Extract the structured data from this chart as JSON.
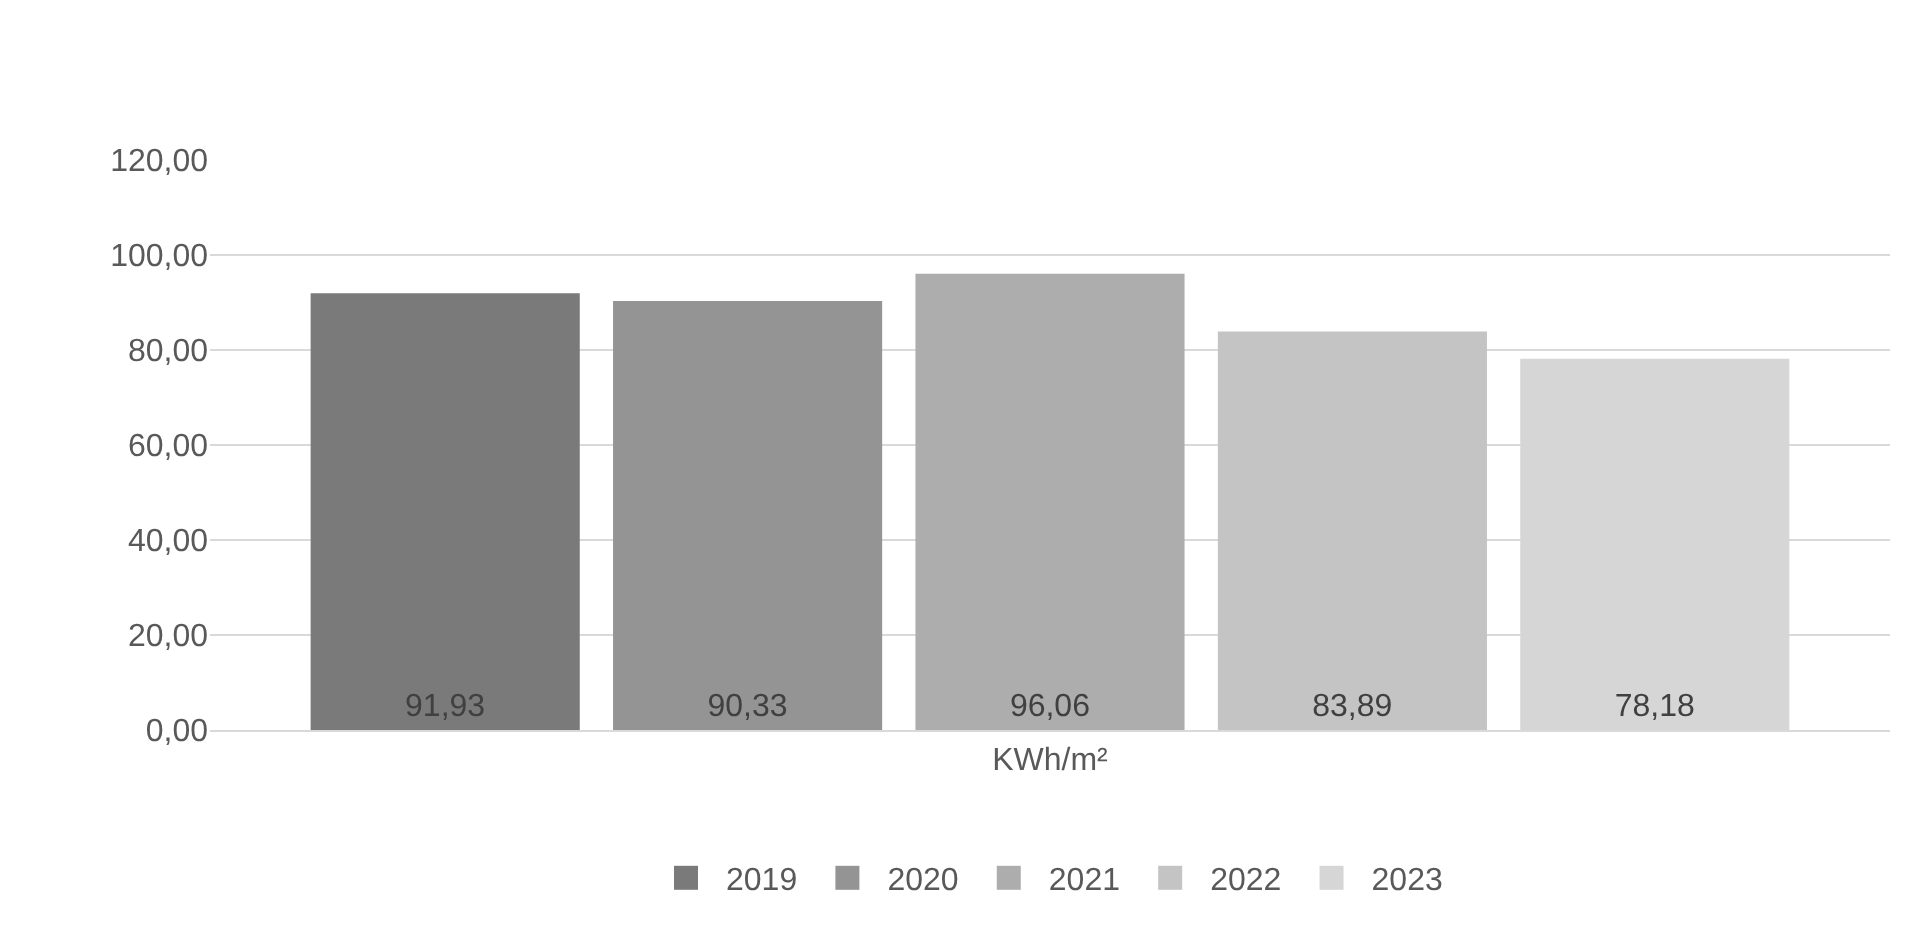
{
  "chart_data": {
    "type": "bar",
    "categories": [
      "KWh/m²"
    ],
    "series": [
      {
        "name": "2019",
        "color": "#7a7a7a",
        "values": [
          91.93
        ],
        "value_labels": [
          "91,93"
        ]
      },
      {
        "name": "2020",
        "color": "#949494",
        "values": [
          90.33
        ],
        "value_labels": [
          "90,33"
        ]
      },
      {
        "name": "2021",
        "color": "#adadad",
        "values": [
          96.06
        ],
        "value_labels": [
          "96,06"
        ]
      },
      {
        "name": "2022",
        "color": "#c4c4c4",
        "values": [
          83.89
        ],
        "value_labels": [
          "83,89"
        ]
      },
      {
        "name": "2023",
        "color": "#d6d6d6",
        "values": [
          78.18
        ],
        "value_labels": [
          "78,18"
        ]
      }
    ],
    "ylim": [
      0,
      120
    ],
    "yticks": [
      {
        "value": 0,
        "label": "0,00"
      },
      {
        "value": 20,
        "label": "20,00"
      },
      {
        "value": 40,
        "label": "40,00"
      },
      {
        "value": 60,
        "label": "60,00"
      },
      {
        "value": 80,
        "label": "80,00"
      },
      {
        "value": 100,
        "label": "100,00"
      },
      {
        "value": 120,
        "label": "120,00"
      }
    ],
    "grid": "y",
    "legend": "bottom"
  }
}
